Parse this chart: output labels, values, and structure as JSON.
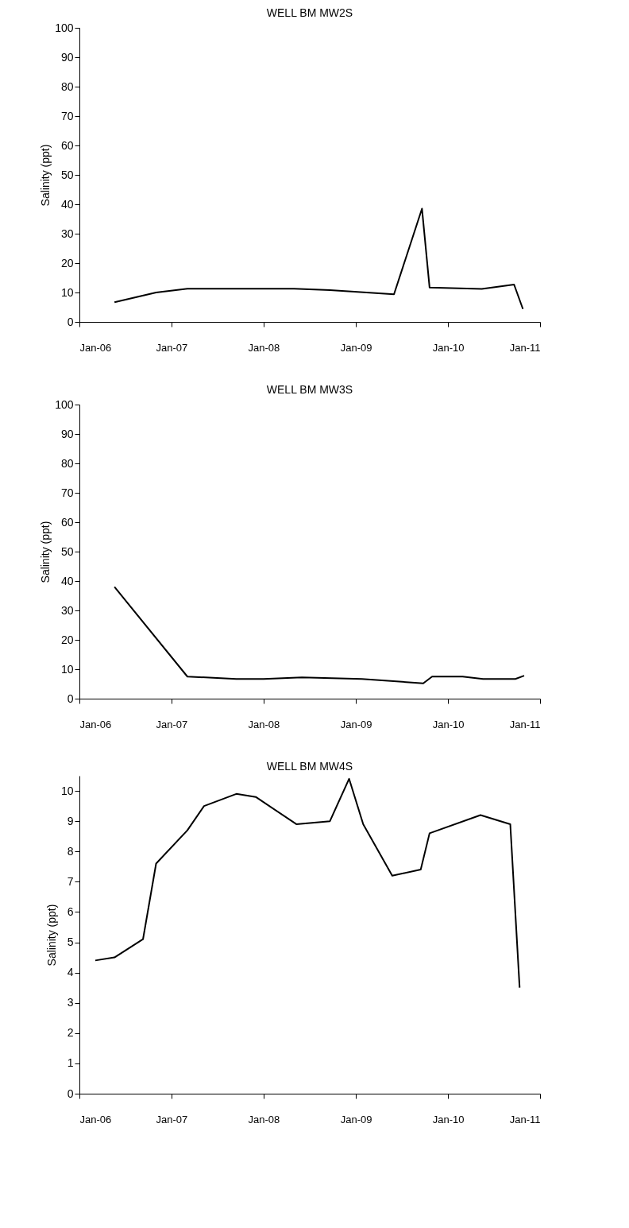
{
  "chart_data": [
    {
      "type": "line",
      "title": "WELL BM MW2S",
      "ylabel": "Salinity (ppt)",
      "xlim": [
        "2006-01-01",
        "2011-01-01"
      ],
      "xticks": [
        {
          "value": "2006-01-01",
          "label": "Jan-06"
        },
        {
          "value": "2007-01-01",
          "label": "Jan-07"
        },
        {
          "value": "2008-01-01",
          "label": "Jan-08"
        },
        {
          "value": "2009-01-01",
          "label": "Jan-09"
        },
        {
          "value": "2010-01-01",
          "label": "Jan-10"
        },
        {
          "value": "2011-01-01",
          "label": "Jan-11"
        }
      ],
      "ylim": [
        0,
        100
      ],
      "yticks": [
        0,
        10,
        20,
        30,
        40,
        50,
        60,
        70,
        80,
        90,
        100
      ],
      "x": [
        "2006-05-20",
        "2006-11-01",
        "2007-03-05",
        "2008-05-01",
        "2008-09-20",
        "2009-06-01",
        "2009-09-20",
        "2009-10-20",
        "2010-05-15",
        "2010-09-20",
        "2010-10-25"
      ],
      "series": [
        {
          "color": "#000000",
          "values": [
            6.7,
            10,
            11.3,
            11.3,
            10.8,
            9.4,
            38.5,
            11.7,
            11.2,
            12.7,
            4.4
          ]
        }
      ]
    },
    {
      "type": "line",
      "title": "WELL BM MW3S",
      "ylabel": "Salinity (ppt)",
      "xlim": [
        "2006-01-01",
        "2011-01-01"
      ],
      "xticks": [
        {
          "value": "2006-01-01",
          "label": "Jan-06"
        },
        {
          "value": "2007-01-01",
          "label": "Jan-07"
        },
        {
          "value": "2008-01-01",
          "label": "Jan-08"
        },
        {
          "value": "2009-01-01",
          "label": "Jan-09"
        },
        {
          "value": "2010-01-01",
          "label": "Jan-10"
        },
        {
          "value": "2011-01-01",
          "label": "Jan-11"
        }
      ],
      "ylim": [
        0,
        100
      ],
      "yticks": [
        0,
        10,
        20,
        30,
        40,
        50,
        60,
        70,
        80,
        90,
        100
      ],
      "x": [
        "2006-05-20",
        "2007-03-05",
        "2007-09-15",
        "2008-01-01",
        "2008-06-01",
        "2009-01-25",
        "2009-09-25",
        "2009-10-30",
        "2010-02-28",
        "2010-05-20",
        "2010-09-25",
        "2010-10-30"
      ],
      "series": [
        {
          "color": "#000000",
          "values": [
            38,
            7.5,
            6.7,
            6.7,
            7.2,
            6.7,
            5.2,
            7.5,
            7.5,
            6.7,
            6.7,
            7.8
          ]
        }
      ]
    },
    {
      "type": "line",
      "title": "WELL BM MW4S",
      "ylabel": "Salinity (ppt)",
      "xlim": [
        "2006-01-01",
        "2011-01-01"
      ],
      "xticks": [
        {
          "value": "2006-01-01",
          "label": "Jan-06"
        },
        {
          "value": "2007-01-01",
          "label": "Jan-07"
        },
        {
          "value": "2008-01-01",
          "label": "Jan-08"
        },
        {
          "value": "2009-01-01",
          "label": "Jan-09"
        },
        {
          "value": "2010-01-01",
          "label": "Jan-10"
        },
        {
          "value": "2011-01-01",
          "label": "Jan-11"
        }
      ],
      "ylim": [
        0,
        10.5
      ],
      "yticks": [
        0,
        1,
        2,
        3,
        4,
        5,
        6,
        7,
        8,
        9,
        10
      ],
      "x": [
        "2006-03-05",
        "2006-05-20",
        "2006-09-10",
        "2006-11-01",
        "2007-03-05",
        "2007-05-10",
        "2007-09-15",
        "2007-12-01",
        "2008-05-10",
        "2008-09-20",
        "2008-12-05",
        "2009-01-30",
        "2009-05-25",
        "2009-09-15",
        "2009-10-20",
        "2010-05-10",
        "2010-09-05",
        "2010-10-12"
      ],
      "series": [
        {
          "color": "#000000",
          "values": [
            4.4,
            4.5,
            5.1,
            7.6,
            8.7,
            9.5,
            9.9,
            9.8,
            8.9,
            9.0,
            10.4,
            8.9,
            7.2,
            7.4,
            8.6,
            9.2,
            8.9,
            3.5
          ]
        }
      ]
    }
  ]
}
